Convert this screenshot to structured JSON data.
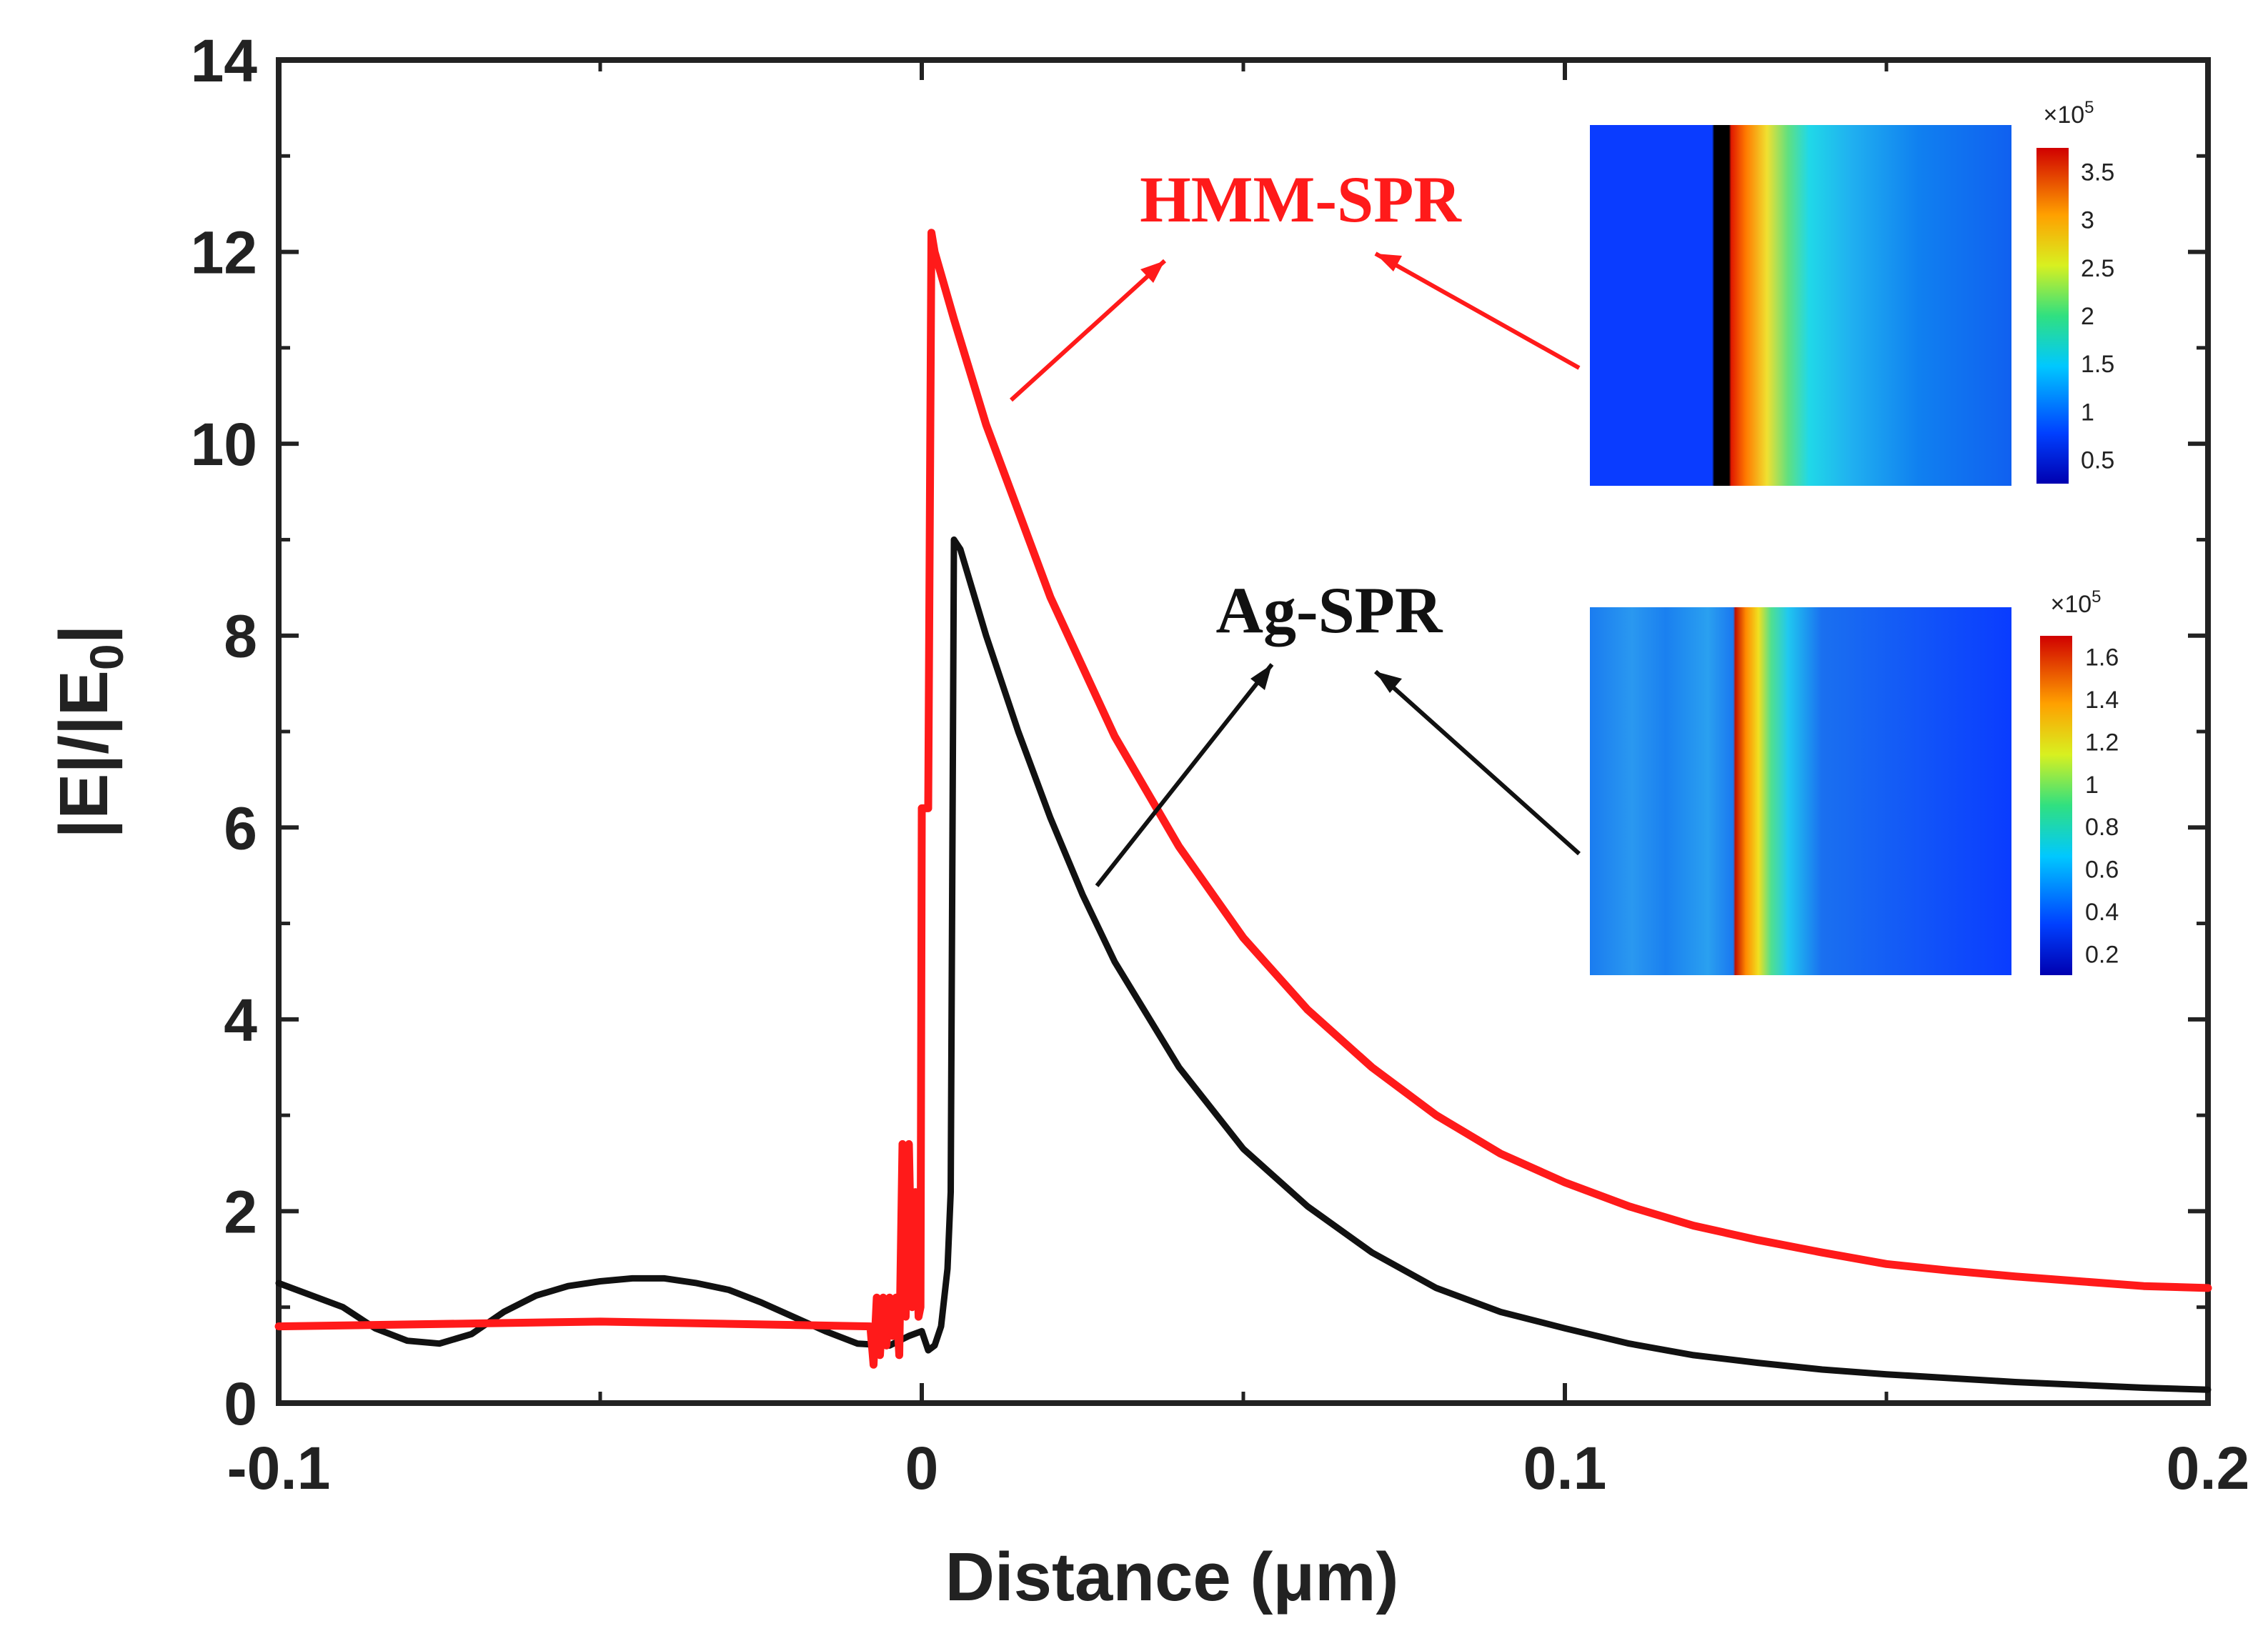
{
  "chart_data": {
    "type": "line",
    "xlabel": "Distance (μm)",
    "ylabel": "|E|/|E0|",
    "ylabel_main": "|E|/|E",
    "ylabel_sub": "0",
    "ylabel_end": "|",
    "xlim": [
      -0.1,
      0.2
    ],
    "ylim": [
      0,
      14
    ],
    "xticks": [
      -0.1,
      0,
      0.1,
      0.2
    ],
    "xtick_labels": [
      "-0.1",
      "0",
      "0.1",
      "0.2"
    ],
    "yticks": [
      0,
      2,
      4,
      6,
      8,
      10,
      12,
      14
    ],
    "ytick_labels": [
      "0",
      "2",
      "4",
      "6",
      "8",
      "10",
      "12",
      "14"
    ],
    "grid": false,
    "series": [
      {
        "name": "HMM-SPR",
        "color": "#ff1a1a",
        "x": [
          -0.1,
          -0.05,
          -0.008,
          -0.0075,
          -0.007,
          -0.0065,
          -0.006,
          -0.0055,
          -0.005,
          -0.0045,
          -0.004,
          -0.0035,
          -0.003,
          -0.0025,
          -0.002,
          -0.0015,
          -0.001,
          -0.0005,
          -0.0002,
          0.0,
          0.0005,
          0.001,
          0.0015,
          0.002,
          0.005,
          0.01,
          0.015,
          0.02,
          0.03,
          0.04,
          0.05,
          0.06,
          0.07,
          0.08,
          0.09,
          0.1,
          0.11,
          0.12,
          0.13,
          0.14,
          0.15,
          0.16,
          0.17,
          0.18,
          0.19,
          0.2
        ],
        "y": [
          0.8,
          0.85,
          0.8,
          0.4,
          1.1,
          0.5,
          1.1,
          0.6,
          1.1,
          0.7,
          1.1,
          0.5,
          2.7,
          0.9,
          2.7,
          1.0,
          2.2,
          0.9,
          1.0,
          6.2,
          6.2,
          6.2,
          12.2,
          12.0,
          11.3,
          10.2,
          9.3,
          8.4,
          6.95,
          5.8,
          4.85,
          4.1,
          3.5,
          3.0,
          2.6,
          2.3,
          2.05,
          1.85,
          1.7,
          1.57,
          1.45,
          1.38,
          1.32,
          1.27,
          1.22,
          1.2
        ]
      },
      {
        "name": "Ag-SPR",
        "color": "#111111",
        "x": [
          -0.1,
          -0.09,
          -0.085,
          -0.08,
          -0.075,
          -0.07,
          -0.065,
          -0.06,
          -0.055,
          -0.05,
          -0.045,
          -0.04,
          -0.035,
          -0.03,
          -0.025,
          -0.02,
          -0.015,
          -0.01,
          -0.005,
          -0.002,
          0.0,
          0.001,
          0.002,
          0.003,
          0.004,
          0.0045,
          0.005,
          0.006,
          0.01,
          0.015,
          0.02,
          0.025,
          0.03,
          0.04,
          0.05,
          0.06,
          0.07,
          0.08,
          0.09,
          0.1,
          0.11,
          0.12,
          0.13,
          0.14,
          0.15,
          0.16,
          0.17,
          0.18,
          0.19,
          0.2
        ],
        "y": [
          1.25,
          1.0,
          0.78,
          0.65,
          0.62,
          0.72,
          0.95,
          1.12,
          1.22,
          1.27,
          1.3,
          1.3,
          1.25,
          1.18,
          1.05,
          0.9,
          0.75,
          0.62,
          0.6,
          0.7,
          0.75,
          0.55,
          0.6,
          0.8,
          1.4,
          2.2,
          9.0,
          8.9,
          8.0,
          7.0,
          6.1,
          5.3,
          4.6,
          3.5,
          2.65,
          2.05,
          1.57,
          1.2,
          0.95,
          0.78,
          0.62,
          0.5,
          0.42,
          0.35,
          0.3,
          0.26,
          0.22,
          0.19,
          0.16,
          0.14
        ]
      }
    ],
    "annotations": [
      {
        "text": "HMM-SPR",
        "color": "#ff1a1a"
      },
      {
        "text": "Ag-SPR",
        "color": "#111111"
      }
    ],
    "insets": [
      {
        "name": "HMM-SPR field map",
        "colorbar_exponent": "×10",
        "colorbar_power": "5",
        "colorbar_ticks": [
          "3.5",
          "3",
          "2.5",
          "2",
          "1.5",
          "1",
          "0.5"
        ]
      },
      {
        "name": "Ag-SPR field map",
        "colorbar_exponent": "×10",
        "colorbar_power": "5",
        "colorbar_ticks": [
          "1.6",
          "1.4",
          "1.2",
          "1",
          "0.8",
          "0.6",
          "0.4",
          "0.2"
        ]
      }
    ]
  }
}
